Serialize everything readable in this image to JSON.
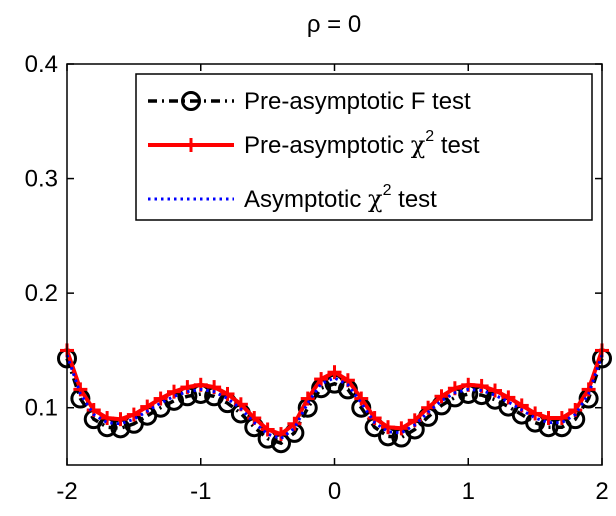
{
  "chart_data": {
    "type": "line",
    "title": "ρ = 0",
    "xlabel": "",
    "ylabel": "",
    "xlim": [
      -2,
      2
    ],
    "ylim": [
      0.05,
      0.4
    ],
    "x_ticks": [
      "-2",
      "-1",
      "0",
      "1",
      "2"
    ],
    "y_ticks": [
      "0.1",
      "0.2",
      "0.3",
      "0.4"
    ],
    "grid": false,
    "legend_position": "top-right",
    "x": [
      -2.0,
      -1.9,
      -1.8,
      -1.7,
      -1.6,
      -1.5,
      -1.4,
      -1.3,
      -1.2,
      -1.1,
      -1.0,
      -0.9,
      -0.8,
      -0.7,
      -0.6,
      -0.5,
      -0.4,
      -0.3,
      -0.2,
      -0.1,
      0.0,
      0.1,
      0.2,
      0.3,
      0.4,
      0.5,
      0.6,
      0.7,
      0.8,
      0.9,
      1.0,
      1.1,
      1.2,
      1.3,
      1.4,
      1.5,
      1.6,
      1.7,
      1.8,
      1.9,
      2.0
    ],
    "series": [
      {
        "name": "Pre-asymptotic F test",
        "color": "#000000",
        "line_style": "dashdot",
        "marker": "circle",
        "values": [
          0.143,
          0.108,
          0.09,
          0.083,
          0.082,
          0.086,
          0.093,
          0.1,
          0.106,
          0.11,
          0.112,
          0.11,
          0.104,
          0.095,
          0.083,
          0.073,
          0.069,
          0.078,
          0.1,
          0.117,
          0.121,
          0.116,
          0.1,
          0.083,
          0.075,
          0.074,
          0.081,
          0.092,
          0.102,
          0.109,
          0.112,
          0.111,
          0.107,
          0.101,
          0.094,
          0.087,
          0.083,
          0.083,
          0.09,
          0.108,
          0.143
        ]
      },
      {
        "name": "Pre-asymptotic χ² test",
        "color": "#ff0000",
        "line_style": "solid",
        "marker": "plus",
        "values": [
          0.15,
          0.116,
          0.098,
          0.091,
          0.09,
          0.094,
          0.101,
          0.108,
          0.114,
          0.118,
          0.12,
          0.118,
          0.112,
          0.103,
          0.091,
          0.081,
          0.077,
          0.086,
          0.108,
          0.125,
          0.131,
          0.124,
          0.108,
          0.091,
          0.083,
          0.082,
          0.089,
          0.1,
          0.11,
          0.117,
          0.12,
          0.119,
          0.115,
          0.109,
          0.102,
          0.095,
          0.091,
          0.091,
          0.098,
          0.116,
          0.15
        ]
      },
      {
        "name": "Asymptotic χ² test",
        "color": "#0000ff",
        "line_style": "dotted",
        "marker": "none",
        "values": [
          0.146,
          0.112,
          0.094,
          0.087,
          0.086,
          0.09,
          0.097,
          0.104,
          0.11,
          0.114,
          0.116,
          0.114,
          0.108,
          0.099,
          0.087,
          0.077,
          0.073,
          0.082,
          0.104,
          0.121,
          0.126,
          0.12,
          0.104,
          0.087,
          0.079,
          0.078,
          0.085,
          0.096,
          0.106,
          0.113,
          0.116,
          0.115,
          0.111,
          0.105,
          0.098,
          0.091,
          0.087,
          0.087,
          0.094,
          0.112,
          0.146
        ]
      }
    ],
    "legend": [
      {
        "pre": "Pre-asymptotic F test",
        "sup": "",
        "post": ""
      },
      {
        "pre": "Pre-asymptotic ",
        "greek": "χ",
        "sup": "2",
        "post": " test"
      },
      {
        "pre": "Asymptotic ",
        "greek": "χ",
        "sup": "2",
        "post": " test"
      }
    ]
  }
}
